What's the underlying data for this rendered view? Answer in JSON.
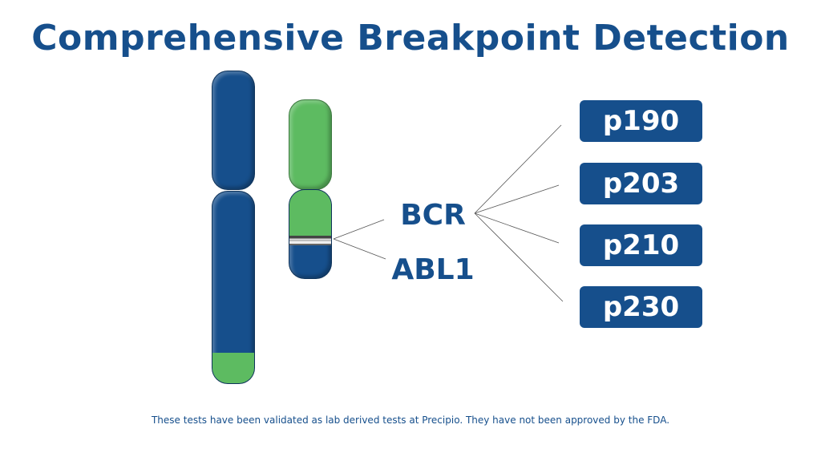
{
  "title": "Comprehensive Breakpoint Detection",
  "genes": {
    "bcr": "BCR",
    "abl1": "ABL1"
  },
  "variants": [
    "p190",
    "p203",
    "p210",
    "p230"
  ],
  "footer": "These tests have been validated as lab derived tests at Precipio. They have not been approved by the FDA.",
  "colors": {
    "primary": "#164f8c",
    "green": "#5dbb61"
  }
}
